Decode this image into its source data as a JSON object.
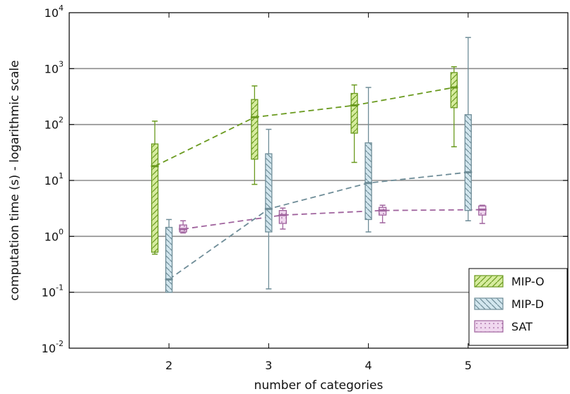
{
  "chart_data": {
    "type": "box",
    "xlabel": "number of categories",
    "ylabel": "computation time (s) - logarithmic scale",
    "yscale": "log",
    "ylim": [
      0.01,
      10000
    ],
    "xlim": [
      1,
      6
    ],
    "x_ticks": [
      2,
      3,
      4,
      5
    ],
    "y_ticks": [
      {
        "base": "10",
        "exp": "-2"
      },
      {
        "base": "10",
        "exp": "-1"
      },
      {
        "base": "10",
        "exp": "0"
      },
      {
        "base": "10",
        "exp": "1"
      },
      {
        "base": "10",
        "exp": "2"
      },
      {
        "base": "10",
        "exp": "3"
      },
      {
        "base": "10",
        "exp": "4"
      }
    ],
    "grid": "horizontal",
    "legend_position": "bottom-right",
    "series": [
      {
        "name": "MIP-O",
        "color": "#6a9a1f",
        "fill": "#d6ec9e",
        "hatch": "diagonal-forward",
        "categories": [
          2,
          3,
          4,
          5
        ],
        "min": [
          0.48,
          8.5,
          21,
          40
        ],
        "q1": [
          0.52,
          24,
          70,
          200
        ],
        "median": [
          18,
          135,
          220,
          460
        ],
        "q3": [
          45,
          280,
          360,
          850
        ],
        "max": [
          115,
          490,
          510,
          1080
        ],
        "trend": [
          18,
          135,
          220,
          460
        ]
      },
      {
        "name": "MIP-D",
        "color": "#6f8d98",
        "fill": "#d2e6ee",
        "hatch": "diagonal-backward",
        "categories": [
          2,
          3,
          4,
          5
        ],
        "min": [
          0.1,
          0.115,
          1.2,
          1.9
        ],
        "q1": [
          0.1,
          1.2,
          2.0,
          2.9
        ],
        "median": [
          0.17,
          3.1,
          9.0,
          14
        ],
        "q3": [
          1.45,
          30,
          47,
          150
        ],
        "max": [
          2.0,
          82,
          460,
          3600
        ],
        "trend": [
          0.17,
          3.1,
          9.0,
          14
        ]
      },
      {
        "name": "SAT",
        "color": "#a0649e",
        "fill": "#f0d8ef",
        "hatch": "dots",
        "categories": [
          2,
          3,
          4,
          5
        ],
        "min": [
          1.15,
          1.35,
          1.75,
          1.7
        ],
        "q1": [
          1.2,
          1.7,
          2.4,
          2.4
        ],
        "median": [
          1.35,
          2.4,
          2.9,
          3.0
        ],
        "q3": [
          1.6,
          2.9,
          3.3,
          3.5
        ],
        "max": [
          1.9,
          3.2,
          3.6,
          3.6
        ],
        "trend": [
          1.35,
          2.4,
          2.9,
          3.0
        ]
      }
    ]
  }
}
